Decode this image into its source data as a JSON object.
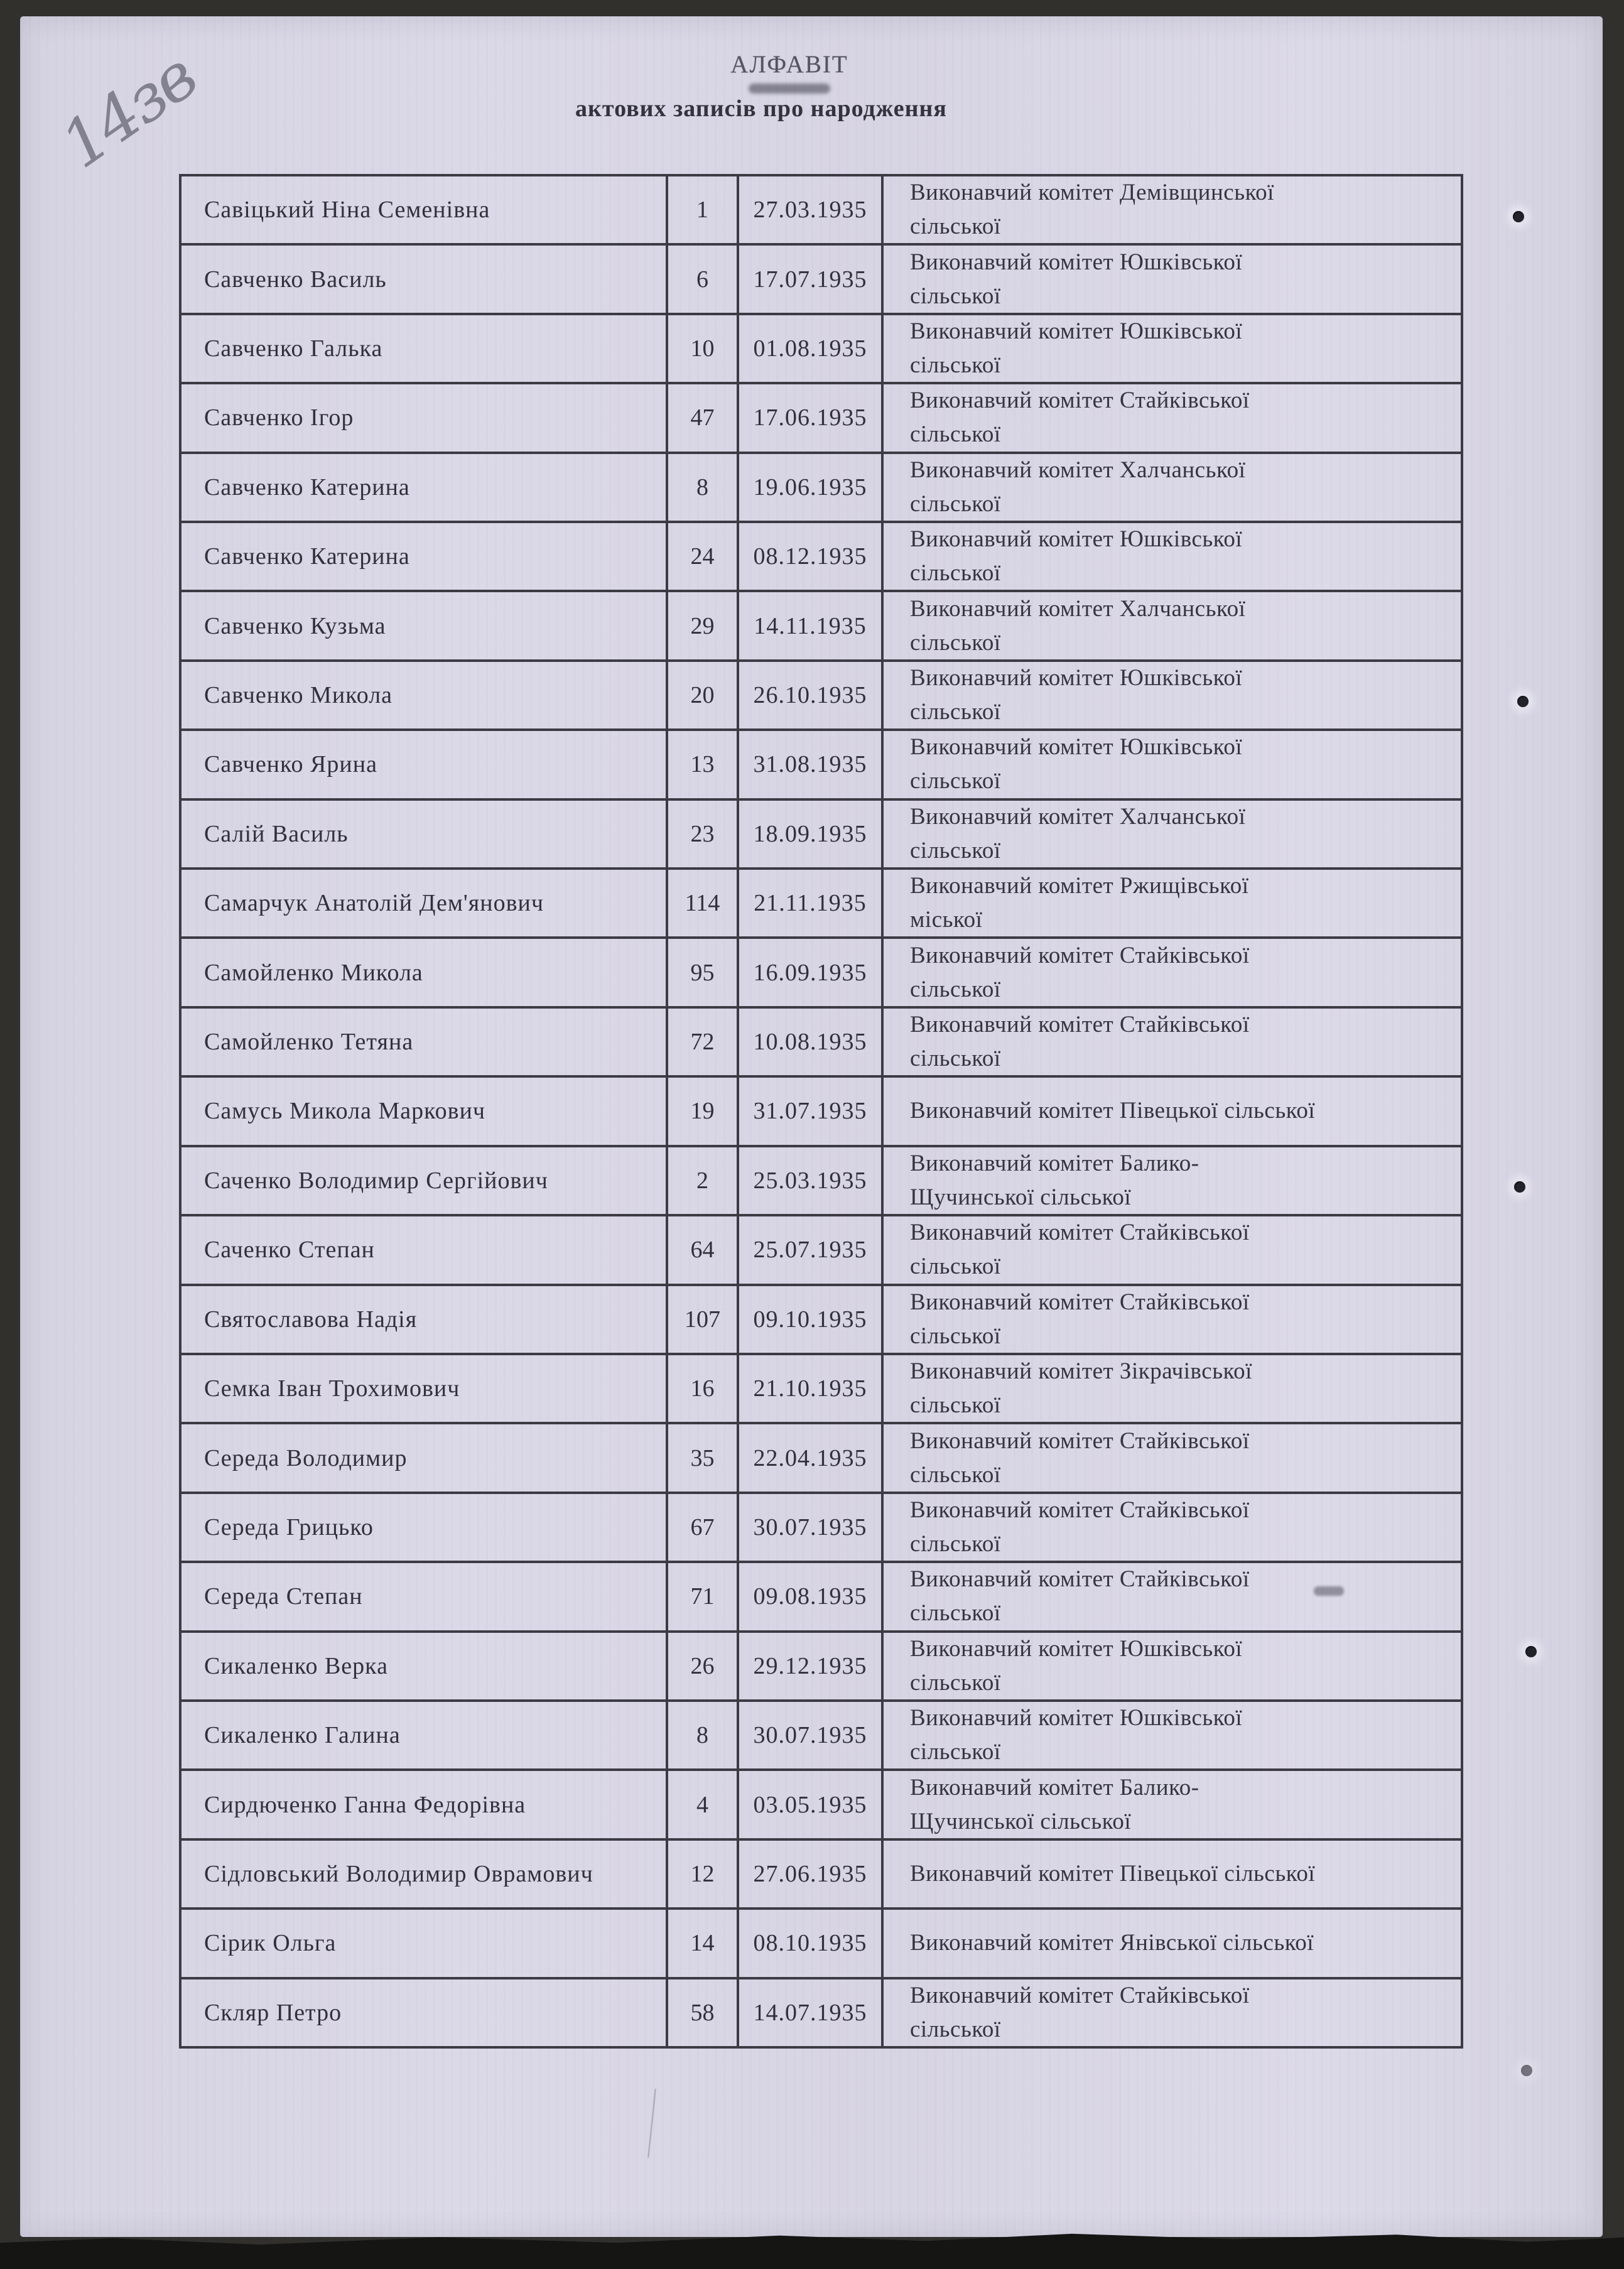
{
  "page": {
    "handwritten_page_number": "14зв",
    "title": "АЛФАВІТ",
    "subtitle": "актових записів про народження"
  },
  "table": {
    "rows": [
      {
        "name": "Савіцький Ніна Семенівна",
        "number": "1",
        "date": "27.03.1935",
        "office_lines": [
          "Виконавчий комітет Демівщинської",
          "сільської"
        ]
      },
      {
        "name": "Савченко Василь",
        "number": "6",
        "date": "17.07.1935",
        "office_lines": [
          "Виконавчий комітет Юшківської",
          "сільської"
        ]
      },
      {
        "name": "Савченко Галька",
        "number": "10",
        "date": "01.08.1935",
        "office_lines": [
          "Виконавчий комітет Юшківської",
          "сільської"
        ]
      },
      {
        "name": "Савченко Ігор",
        "number": "47",
        "date": "17.06.1935",
        "office_lines": [
          "Виконавчий комітет Стайківської",
          "сільської"
        ]
      },
      {
        "name": "Савченко Катерина",
        "number": "8",
        "date": "19.06.1935",
        "office_lines": [
          "Виконавчий комітет Халчанської",
          "сільської"
        ]
      },
      {
        "name": "Савченко Катерина",
        "number": "24",
        "date": "08.12.1935",
        "office_lines": [
          "Виконавчий комітет Юшківської",
          "сільської"
        ]
      },
      {
        "name": "Савченко Кузьма",
        "number": "29",
        "date": "14.11.1935",
        "office_lines": [
          "Виконавчий комітет Халчанської",
          "сільської"
        ]
      },
      {
        "name": "Савченко Микола",
        "number": "20",
        "date": "26.10.1935",
        "office_lines": [
          "Виконавчий комітет Юшківської",
          "сільської"
        ]
      },
      {
        "name": "Савченко Ярина",
        "number": "13",
        "date": "31.08.1935",
        "office_lines": [
          "Виконавчий комітет Юшківської",
          "сільської"
        ]
      },
      {
        "name": "Салій Василь",
        "number": "23",
        "date": "18.09.1935",
        "office_lines": [
          "Виконавчий комітет Халчанської",
          "сільської"
        ]
      },
      {
        "name": "Самарчук Анатолій Дем'янович",
        "number": "114",
        "date": "21.11.1935",
        "office_lines": [
          "Виконавчий комітет Ржищівської",
          "міської"
        ]
      },
      {
        "name": "Самойленко Микола",
        "number": "95",
        "date": "16.09.1935",
        "office_lines": [
          "Виконавчий комітет Стайківської",
          "сільської"
        ]
      },
      {
        "name": "Самойленко Тетяна",
        "number": "72",
        "date": "10.08.1935",
        "office_lines": [
          "Виконавчий комітет Стайківської",
          "сільської"
        ]
      },
      {
        "name": "Самусь Микола Маркович",
        "number": "19",
        "date": "31.07.1935",
        "office_lines": [
          "Виконавчий комітет Півецької сільської"
        ]
      },
      {
        "name": "Саченко Володимир Сергійович",
        "number": "2",
        "date": "25.03.1935",
        "office_lines": [
          "Виконавчий комітет Балико-",
          "Щучинської сільської"
        ]
      },
      {
        "name": "Саченко Степан",
        "number": "64",
        "date": "25.07.1935",
        "office_lines": [
          "Виконавчий комітет Стайківської",
          "сільської"
        ]
      },
      {
        "name": "Святославова Надія",
        "number": "107",
        "date": "09.10.1935",
        "office_lines": [
          "Виконавчий комітет Стайківської",
          "сільської"
        ]
      },
      {
        "name": "Семка Іван Трохимович",
        "number": "16",
        "date": "21.10.1935",
        "office_lines": [
          "Виконавчий комітет Зікрачівської",
          "сільської"
        ]
      },
      {
        "name": "Середа Володимир",
        "number": "35",
        "date": "22.04.1935",
        "office_lines": [
          "Виконавчий комітет Стайківської",
          "сільської"
        ]
      },
      {
        "name": "Середа Грицько",
        "number": "67",
        "date": "30.07.1935",
        "office_lines": [
          "Виконавчий комітет Стайківської",
          "сільської"
        ]
      },
      {
        "name": "Середа Степан",
        "number": "71",
        "date": "09.08.1935",
        "office_lines": [
          "Виконавчий комітет Стайківської",
          "сільської"
        ]
      },
      {
        "name": "Сикаленко Верка",
        "number": "26",
        "date": "29.12.1935",
        "office_lines": [
          "Виконавчий комітет Юшківської",
          "сільської"
        ]
      },
      {
        "name": "Сикаленко Галина",
        "number": "8",
        "date": "30.07.1935",
        "office_lines": [
          "Виконавчий комітет Юшківської",
          "сільської"
        ]
      },
      {
        "name": "Сирдюченко Ганна Федорівна",
        "number": "4",
        "date": "03.05.1935",
        "office_lines": [
          "Виконавчий комітет Балико-",
          "Щучинської сільської"
        ]
      },
      {
        "name": "Сідловський Володимир Оврамович",
        "number": "12",
        "date": "27.06.1935",
        "office_lines": [
          "Виконавчий комітет Півецької сільської"
        ]
      },
      {
        "name": "Сірик Ольга",
        "number": "14",
        "date": "08.10.1935",
        "office_lines": [
          "Виконавчий комітет Янівської сільської"
        ]
      },
      {
        "name": "Скляр Петро",
        "number": "58",
        "date": "14.07.1935",
        "office_lines": [
          "Виконавчий комітет Стайківської",
          "сільської"
        ]
      }
    ]
  },
  "colors": {
    "paper": "#d9d6e5",
    "scan_frame": "#31302c",
    "scan_bottom": "#151513",
    "ink": "#30303a",
    "table_border": "#3c3b44",
    "pencil": "#6e6e7a"
  }
}
